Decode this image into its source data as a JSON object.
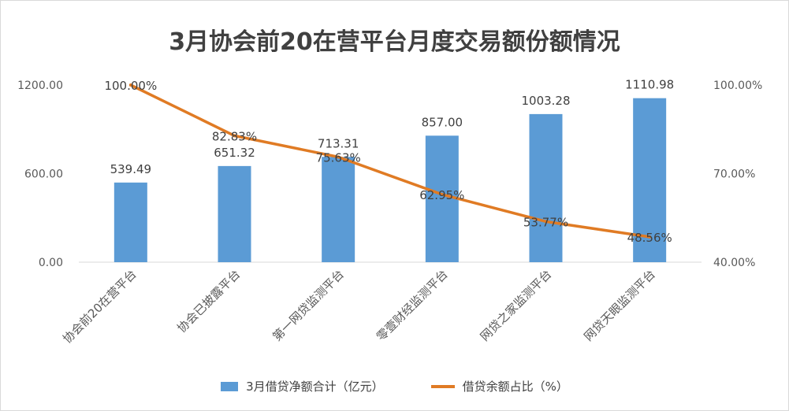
{
  "chart_data": {
    "type": "bar",
    "title": "3月协会前20在营平台月度交易额份额情况",
    "categories": [
      "协会前20在营平台",
      "协会已披露平台",
      "第一网贷监测平台",
      "零壹财经监测平台",
      "网贷之家监测平台",
      "网贷天眼监测平台"
    ],
    "series": [
      {
        "name": "3月借贷净额合计（亿元）",
        "type": "bar",
        "axis": "left",
        "color": "#5b9bd5",
        "values": [
          539.49,
          651.32,
          713.31,
          857.0,
          1003.28,
          1110.98
        ],
        "labels": [
          "539.49",
          "651.32",
          "713.31",
          "857.00",
          "1003.28",
          "1110.98"
        ]
      },
      {
        "name": "借贷余额占比（%）",
        "type": "line",
        "axis": "right",
        "color": "#e07b24",
        "values": [
          100.0,
          82.83,
          75.63,
          62.95,
          53.77,
          48.56
        ],
        "labels": [
          "100.00%",
          "82.83%",
          "75.63%",
          "62.95%",
          "53.77%",
          "48.56%"
        ]
      }
    ],
    "y_left": {
      "range": [
        0,
        1200
      ],
      "ticks": [
        "0.00",
        "600.00",
        "1200.00"
      ],
      "tick_values": [
        0,
        600,
        1200
      ]
    },
    "y_right": {
      "range": [
        40,
        100
      ],
      "ticks": [
        "40.00%",
        "70.00%",
        "100.00%"
      ],
      "tick_values": [
        40,
        70,
        100
      ]
    },
    "grid": false,
    "legend_position": "bottom"
  }
}
